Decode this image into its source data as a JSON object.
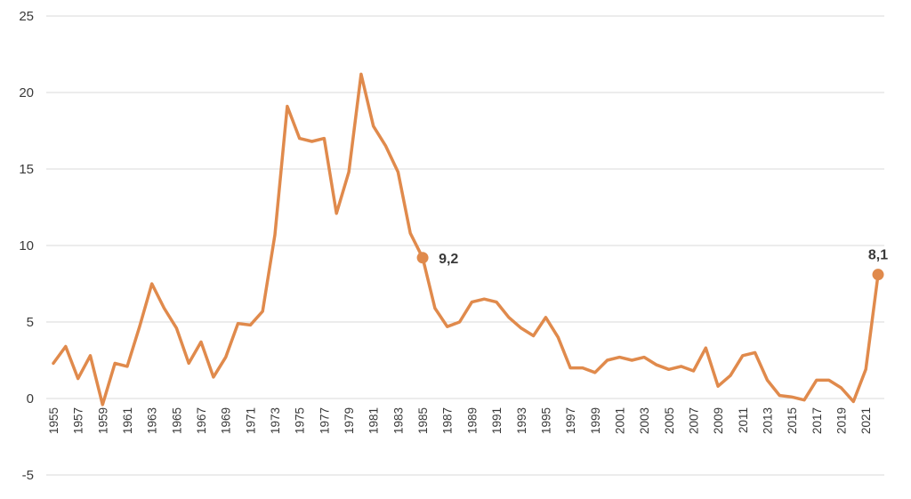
{
  "chart_data": {
    "type": "line",
    "title": "",
    "xlabel": "",
    "ylabel": "",
    "ylim": [
      -5,
      25
    ],
    "yticks": [
      -5,
      0,
      5,
      10,
      15,
      20,
      25
    ],
    "grid": "horizontal",
    "legend": "none",
    "color": "#E08A4C",
    "x": [
      1955,
      1956,
      1957,
      1958,
      1959,
      1960,
      1961,
      1962,
      1963,
      1964,
      1965,
      1966,
      1967,
      1968,
      1969,
      1970,
      1971,
      1972,
      1973,
      1974,
      1975,
      1976,
      1977,
      1978,
      1979,
      1980,
      1981,
      1982,
      1983,
      1984,
      1985,
      1986,
      1987,
      1988,
      1989,
      1990,
      1991,
      1992,
      1993,
      1994,
      1995,
      1996,
      1997,
      1998,
      1999,
      2000,
      2001,
      2002,
      2003,
      2004,
      2005,
      2006,
      2007,
      2008,
      2009,
      2010,
      2011,
      2012,
      2013,
      2014,
      2015,
      2016,
      2017,
      2018,
      2019,
      2020,
      2021,
      2022
    ],
    "series": [
      {
        "values": [
          2.3,
          3.4,
          1.3,
          2.8,
          -0.4,
          2.3,
          2.1,
          4.7,
          7.5,
          5.9,
          4.6,
          2.3,
          3.7,
          1.4,
          2.7,
          4.9,
          4.8,
          5.7,
          10.7,
          19.1,
          17.0,
          16.8,
          17.0,
          12.1,
          14.8,
          21.2,
          17.8,
          16.5,
          14.8,
          10.8,
          9.2,
          5.9,
          4.7,
          5.0,
          6.3,
          6.5,
          6.3,
          5.3,
          4.6,
          4.1,
          5.3,
          4.0,
          2.0,
          2.0,
          1.7,
          2.5,
          2.7,
          2.5,
          2.7,
          2.2,
          1.9,
          2.1,
          1.8,
          3.3,
          0.8,
          1.5,
          2.8,
          3.0,
          1.2,
          0.2,
          0.1,
          -0.1,
          1.2,
          1.2,
          0.7,
          -0.2,
          1.9,
          8.1
        ]
      }
    ],
    "xtick_labels": [
      "1955",
      "1957",
      "1959",
      "1961",
      "1963",
      "1965",
      "1967",
      "1969",
      "1971",
      "1973",
      "1975",
      "1977",
      "1979",
      "1981",
      "1983",
      "1985",
      "1987",
      "1989",
      "1991",
      "1993",
      "1995",
      "1997",
      "1999",
      "2001",
      "2003",
      "2005",
      "2007",
      "2009",
      "2011",
      "2013",
      "2015",
      "2017",
      "2019",
      "2021"
    ],
    "data_labels": [
      {
        "x": 1985,
        "y": 9.2,
        "text": "9,2"
      },
      {
        "x": 2022,
        "y": 8.1,
        "text": "8,1"
      }
    ]
  }
}
